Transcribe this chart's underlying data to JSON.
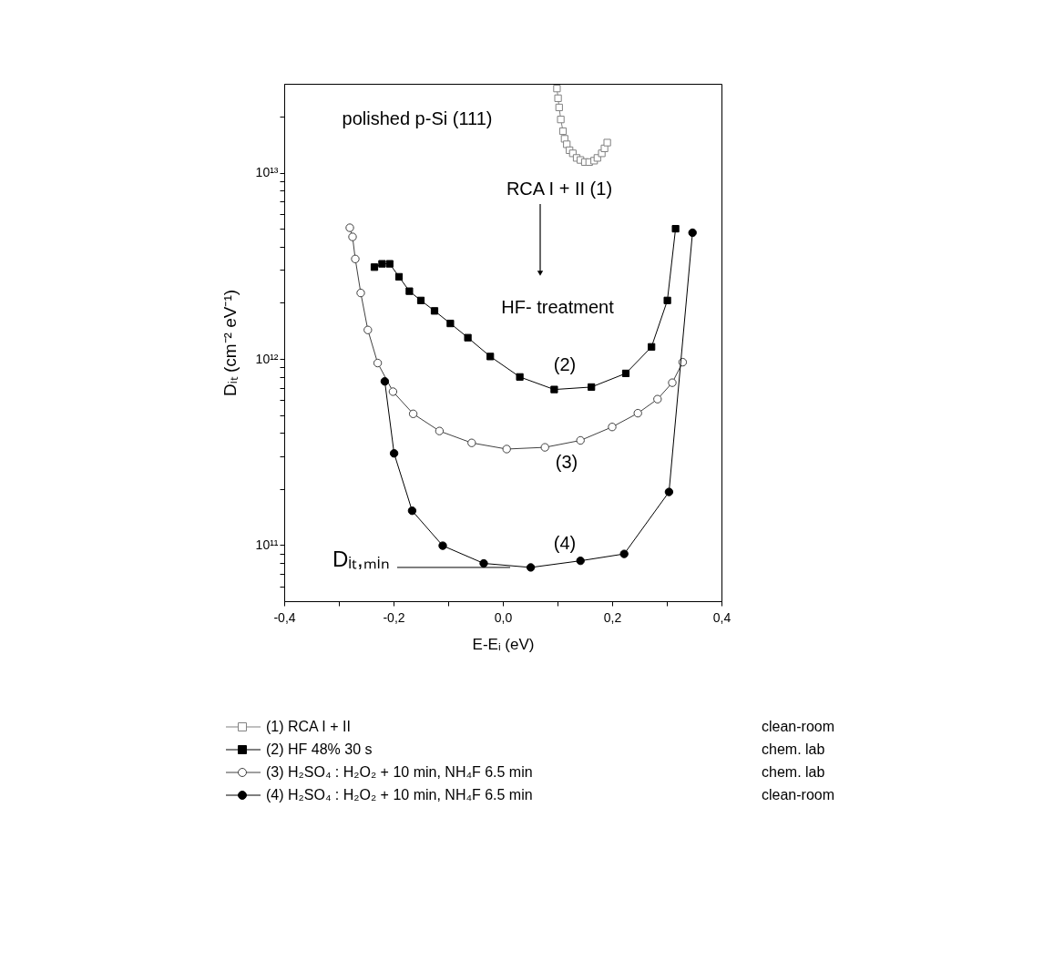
{
  "chart_data": {
    "type": "line",
    "xlabel": "E-Eᵢ (eV)",
    "ylabel": "Dᵢₜ (cm⁻² eV⁻¹)",
    "log": true,
    "grid": false,
    "legend": "bottom",
    "line_style": "solid",
    "xlim": [
      -0.4,
      0.4
    ],
    "xticks": [
      {
        "value": -0.4,
        "label": "-0,4"
      },
      {
        "value": -0.3,
        "label": null
      },
      {
        "value": -0.2,
        "label": "-0,2"
      },
      {
        "value": -0.1,
        "label": null
      },
      {
        "value": 0,
        "label": "0,0"
      },
      {
        "value": 0.1,
        "label": null
      },
      {
        "value": 0.2,
        "label": "0,2"
      },
      {
        "value": 0.3,
        "label": null
      },
      {
        "value": 0.4,
        "label": "0,4"
      }
    ],
    "ylim": [
      50000000000.0,
      30000000000000.0
    ],
    "yticks": [
      {
        "value": 60000000000.0,
        "label": null
      },
      {
        "value": 70000000000.0,
        "label": null
      },
      {
        "value": 80000000000.0,
        "label": null
      },
      {
        "value": 90000000000.0,
        "label": null
      },
      {
        "value": 100000000000.0,
        "label": "10¹¹"
      },
      {
        "value": 200000000000.0,
        "label": null
      },
      {
        "value": 300000000000.0,
        "label": null
      },
      {
        "value": 400000000000.0,
        "label": null
      },
      {
        "value": 500000000000.0,
        "label": null
      },
      {
        "value": 600000000000.0,
        "label": null
      },
      {
        "value": 700000000000.0,
        "label": null
      },
      {
        "value": 800000000000.0,
        "label": null
      },
      {
        "value": 900000000000.0,
        "label": null
      },
      {
        "value": 1000000000000.0,
        "label": "10¹²"
      },
      {
        "value": 2000000000000.0,
        "label": null
      },
      {
        "value": 3000000000000.0,
        "label": null
      },
      {
        "value": 4000000000000.0,
        "label": null
      },
      {
        "value": 5000000000000.0,
        "label": null
      },
      {
        "value": 6000000000000.0,
        "label": null
      },
      {
        "value": 7000000000000.0,
        "label": null
      },
      {
        "value": 8000000000000.0,
        "label": null
      },
      {
        "value": 9000000000000.0,
        "label": null
      },
      {
        "value": 10000000000000.0,
        "label": "10¹³"
      },
      {
        "value": 20000000000000.0,
        "label": null
      }
    ],
    "series": [
      {
        "name": "(1) RCA I + II",
        "color": "#808080",
        "marker": "square",
        "x": [
          0.099,
          0.101,
          0.103,
          0.106,
          0.11,
          0.113,
          0.117,
          0.122,
          0.128,
          0.135,
          0.142,
          0.15,
          0.158,
          0.167,
          0.173,
          0.181,
          0.186,
          0.191
        ],
        "values": [
          28300000000000.0,
          25100000000000.0,
          22400000000000.0,
          19300000000000.0,
          16700000000000.0,
          15200000000000.0,
          14200000000000.0,
          13200000000000.0,
          12700000000000.0,
          12000000000000.0,
          11700000000000.0,
          11400000000000.0,
          11400000000000.0,
          11600000000000.0,
          12000000000000.0,
          12700000000000.0,
          13500000000000.0,
          14500000000000.0
        ]
      },
      {
        "name": "(2) HF 48% 30 s",
        "color": "#000000",
        "marker": "square",
        "x": [
          -0.235,
          -0.221,
          -0.207,
          -0.19,
          -0.171,
          -0.15,
          -0.125,
          -0.096,
          -0.064,
          -0.023,
          0.031,
          0.094,
          0.162,
          0.225,
          0.272,
          0.301,
          0.316
        ],
        "values": [
          3110000000000.0,
          3240000000000.0,
          3240000000000.0,
          2760000000000.0,
          2310000000000.0,
          2060000000000.0,
          1810000000000.0,
          1550000000000.0,
          1300000000000.0,
          1030000000000.0,
          800000000000.0,
          685000000000.0,
          706000000000.0,
          836000000000.0,
          1160000000000.0,
          2060000000000.0,
          5000000000000.0
        ]
      },
      {
        "name": "(3) H₂SO₄ : H₂O₂  + 10 min, NH₄F 6.5 min",
        "color": "#404040",
        "marker": "circle",
        "x": [
          -0.28,
          -0.275,
          -0.27,
          -0.26,
          -0.247,
          -0.229,
          -0.201,
          -0.164,
          -0.116,
          -0.057,
          0.007,
          0.077,
          0.142,
          0.2,
          0.247,
          0.283,
          0.31,
          0.329
        ],
        "values": [
          5060000000000.0,
          4520000000000.0,
          3440000000000.0,
          2260000000000.0,
          1430000000000.0,
          950000000000.0,
          667000000000.0,
          507000000000.0,
          410000000000.0,
          354000000000.0,
          328000000000.0,
          335000000000.0,
          365000000000.0,
          431000000000.0,
          511000000000.0,
          608000000000.0,
          745000000000.0,
          960000000000.0
        ]
      },
      {
        "name": "(4) H₂SO₄ : H₂O₂  + 10 min, NH₄F 6.5 min",
        "color": "#000000",
        "marker": "circle",
        "x": [
          -0.216,
          -0.199,
          -0.166,
          -0.11,
          -0.035,
          0.051,
          0.142,
          0.222,
          0.304,
          0.347
        ],
        "values": [
          757000000000.0,
          311000000000.0,
          153000000000.0,
          99300000000.0,
          79800000000.0,
          75900000000.0,
          82400000000.0,
          89700000000.0,
          193000000000.0,
          4760000000000.0
        ]
      }
    ],
    "ref_lines": [
      {
        "axis": "y",
        "value": 75900000000.0,
        "label": "Dᵢₜ,ₘᵢₙ"
      }
    ],
    "annotations": [
      "polished p-Si (111)",
      "RCA I + II (1)",
      "HF- treatment",
      "(2)",
      "(3)",
      "(4)",
      "clean-room",
      "chem. lab",
      "chem. lab",
      "clean-room"
    ]
  }
}
